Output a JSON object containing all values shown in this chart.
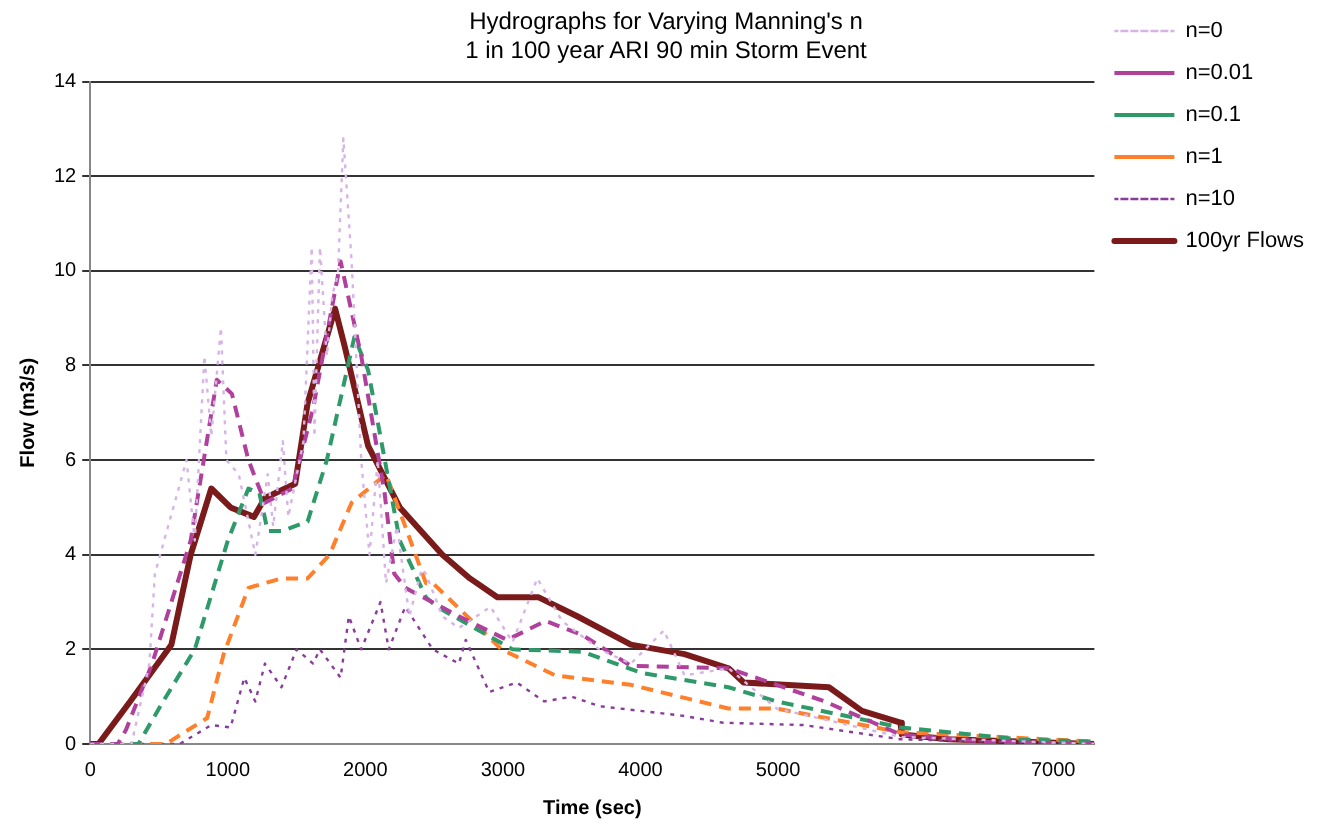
{
  "chart_data": {
    "type": "line",
    "title": "Hydrographs for Varying Manning's n",
    "subtitle": "1 in 100 year ARI 90 min Storm Event",
    "xlabel": "Time (sec)",
    "ylabel": "Flow (m3/s)",
    "xlim": [
      0,
      7300
    ],
    "xticks": [
      0,
      1000,
      2000,
      3000,
      4000,
      5000,
      6000,
      7000
    ],
    "ylim": [
      0,
      14
    ],
    "yticks": [
      0,
      2,
      4,
      6,
      8,
      10,
      12,
      14
    ],
    "grid": "y",
    "legend": "top right",
    "marker": "none",
    "series": [
      {
        "name": "n=0",
        "color": "#d6b4e6",
        "line_style": "dotted",
        "x": [
          0,
          300,
          430,
          470,
          700,
          760,
          830,
          880,
          950,
          990,
          1080,
          1200,
          1290,
          1330,
          1400,
          1440,
          1550,
          1610,
          1630,
          1670,
          1720,
          1760,
          1800,
          1840,
          1900,
          1970,
          2030,
          2090,
          2150,
          2230,
          2320,
          2410,
          2440,
          2560,
          2680,
          2910,
          3070,
          3250,
          3430,
          3700,
          3930,
          4170,
          4320,
          4640,
          4990,
          5890,
          7300
        ],
        "values": [
          0,
          0,
          1.7,
          3.6,
          6.0,
          4.3,
          8.2,
          6.5,
          8.8,
          6.0,
          5.7,
          4.0,
          5.7,
          4.6,
          6.4,
          4.8,
          6.4,
          10.5,
          6.5,
          10.5,
          8.2,
          9.5,
          9.9,
          12.8,
          10.2,
          6.0,
          4.0,
          6.0,
          3.4,
          4.6,
          2.7,
          3.7,
          3.6,
          2.7,
          2.45,
          2.9,
          2.15,
          3.5,
          2.6,
          2.0,
          1.7,
          2.4,
          1.45,
          1.6,
          0.75,
          0.15,
          0
        ]
      },
      {
        "name": "n=0.01",
        "color": "#b0409c",
        "line_style": "dashed",
        "x": [
          0,
          200,
          260,
          450,
          730,
          920,
          1030,
          1150,
          1270,
          1470,
          1620,
          1820,
          1970,
          2140,
          2210,
          2290,
          2680,
          3030,
          3310,
          3580,
          3930,
          4640,
          5340,
          5890,
          6500,
          7300
        ],
        "values": [
          0,
          0,
          0.3,
          1.7,
          4.3,
          7.7,
          7.4,
          6.0,
          5.1,
          5.4,
          7.1,
          10.2,
          8.2,
          5.3,
          3.6,
          3.3,
          2.7,
          2.2,
          2.6,
          2.3,
          1.65,
          1.6,
          0.9,
          0.2,
          0.05,
          0
        ]
      },
      {
        "name": "n=0.1",
        "color": "#2e9a6a",
        "line_style": "dashed",
        "x": [
          0,
          350,
          530,
          760,
          1000,
          1150,
          1230,
          1290,
          1390,
          1580,
          1720,
          1920,
          2020,
          2250,
          2440,
          2520,
          3070,
          3580,
          4010,
          4640,
          4990,
          5890,
          6750,
          7300
        ],
        "values": [
          0,
          0,
          0.9,
          2.0,
          4.3,
          5.4,
          5.3,
          4.5,
          4.5,
          4.7,
          6.0,
          8.6,
          7.9,
          4.3,
          3.1,
          2.9,
          2.0,
          1.95,
          1.5,
          1.2,
          0.9,
          0.35,
          0.1,
          0.05
        ]
      },
      {
        "name": "n=1",
        "color": "#ff7f2a",
        "line_style": "dashed",
        "x": [
          0,
          550,
          850,
          970,
          1150,
          1390,
          1580,
          1740,
          1900,
          2150,
          2290,
          2440,
          2490,
          2990,
          3380,
          3930,
          4640,
          4990,
          5890,
          7300
        ],
        "values": [
          0,
          0,
          0.55,
          1.9,
          3.3,
          3.5,
          3.5,
          4.0,
          5.1,
          5.7,
          4.6,
          3.4,
          3.4,
          2.0,
          1.45,
          1.25,
          0.75,
          0.75,
          0.25,
          0.05
        ]
      },
      {
        "name": "n=10",
        "color": "#8a3c9a",
        "line_style": "dotted",
        "x": [
          0,
          650,
          880,
          1020,
          1120,
          1200,
          1270,
          1390,
          1500,
          1620,
          1670,
          1820,
          1880,
          1970,
          2110,
          2170,
          2290,
          2490,
          2680,
          2730,
          2900,
          3100,
          3300,
          3500,
          3700,
          4000,
          4300,
          4600,
          5190,
          5890,
          7300
        ],
        "values": [
          0,
          0,
          0.4,
          0.35,
          1.4,
          0.9,
          1.7,
          1.2,
          2.0,
          1.7,
          2.0,
          1.4,
          2.7,
          2.0,
          3.0,
          2.0,
          2.9,
          2.0,
          1.7,
          2.2,
          1.1,
          1.3,
          0.9,
          1.0,
          0.8,
          0.7,
          0.6,
          0.45,
          0.4,
          0.1,
          0
        ]
      },
      {
        "name": "100yr Flows",
        "color": "#7b1a1a",
        "line_style": "solid",
        "x": [
          0,
          60,
          290,
          590,
          730,
          880,
          1020,
          1190,
          1270,
          1490,
          1580,
          1780,
          1850,
          2020,
          2250,
          2560,
          2760,
          2960,
          3260,
          3540,
          3930,
          4320,
          4640,
          4750,
          5370,
          5610,
          5890,
          5900,
          6240,
          7300
        ],
        "values": [
          0,
          0,
          0.9,
          2.1,
          4.0,
          5.4,
          5.0,
          4.8,
          5.2,
          5.5,
          7.2,
          9.2,
          8.4,
          6.3,
          5.0,
          4.0,
          3.5,
          3.1,
          3.1,
          2.7,
          2.1,
          1.9,
          1.6,
          1.3,
          1.2,
          0.7,
          0.45,
          0.2,
          0.1,
          0
        ]
      }
    ]
  }
}
